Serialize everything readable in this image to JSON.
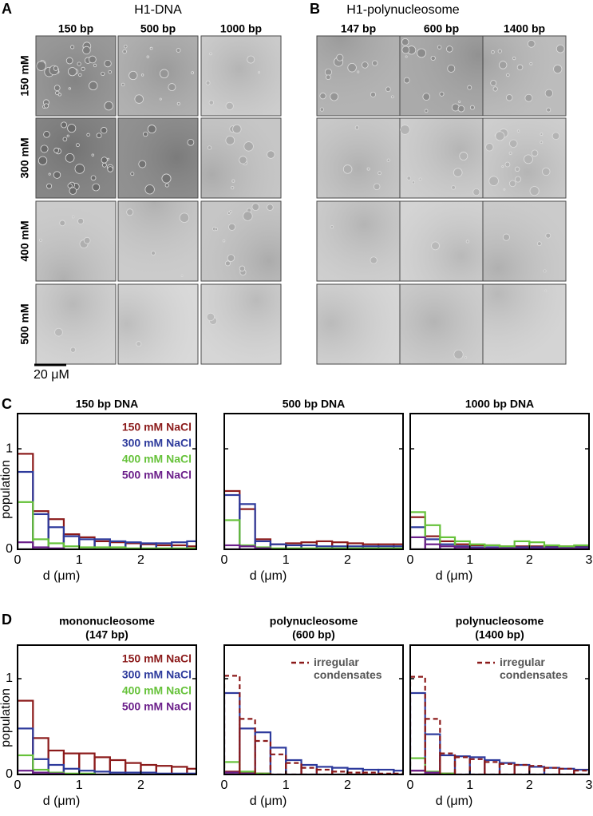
{
  "panel_a": {
    "letter": "A",
    "title": "H1-DNA",
    "columns": [
      "150 bp",
      "500 bp",
      "1000 bp"
    ],
    "rows": [
      "150 mM",
      "300 mM",
      "400 mM",
      "500 mM"
    ],
    "scale_bar": "20 μM"
  },
  "panel_b": {
    "letter": "B",
    "title": "H1-polynucleosome",
    "columns": [
      "147 bp",
      "600 bp",
      "1400 bp"
    ]
  },
  "panel_c": {
    "letter": "C"
  },
  "panel_d": {
    "letter": "D"
  },
  "chart_data": [
    {
      "type": "histogram",
      "title": "150 bp DNA",
      "xlabel": "d (μm)",
      "ylabel": "population",
      "show_ytick_labels": true,
      "bins": [
        0,
        0.25,
        0.5,
        0.75,
        1,
        1.25,
        1.5,
        1.75,
        2,
        2.25,
        2.5,
        2.75,
        3
      ],
      "xlim": [
        0,
        2.9
      ],
      "xticks": [
        0,
        1,
        2
      ],
      "ylim": [
        0,
        1.35
      ],
      "yticks": [
        0,
        1
      ],
      "series": [
        {
          "name": "150 mM NaCl",
          "color": "#8b1a1a",
          "values": [
            0.95,
            0.38,
            0.3,
            0.15,
            0.12,
            0.08,
            0.07,
            0.06,
            0.05,
            0.04,
            0.04,
            0.03
          ]
        },
        {
          "name": "300 mM NaCl",
          "color": "#2d3a9c",
          "values": [
            0.77,
            0.35,
            0.22,
            0.13,
            0.1,
            0.1,
            0.08,
            0.07,
            0.06,
            0.06,
            0.07,
            0.08
          ]
        },
        {
          "name": "400 mM NaCl",
          "color": "#66c23a",
          "values": [
            0.47,
            0.1,
            0.06,
            0.03,
            0.02,
            0.02,
            0.02,
            0.01,
            0.01,
            0.01,
            0.01,
            0.01
          ]
        },
        {
          "name": "500 mM NaCl",
          "color": "#6b1f8a",
          "values": [
            0.07,
            0.02,
            0.01,
            0,
            0,
            0,
            0,
            0,
            0,
            0,
            0,
            0
          ]
        }
      ]
    },
    {
      "type": "histogram",
      "title": "500 bp DNA",
      "xlabel": "d (μm)",
      "show_ytick_labels": false,
      "bins": [
        0,
        0.25,
        0.5,
        0.75,
        1,
        1.25,
        1.5,
        1.75,
        2,
        2.25,
        2.5,
        2.75,
        3
      ],
      "xlim": [
        0,
        2.9
      ],
      "xticks": [
        0,
        1,
        2
      ],
      "ylim": [
        0,
        1.35
      ],
      "yticks": [
        0,
        1
      ],
      "series": [
        {
          "color": "#8b1a1a",
          "values": [
            0.58,
            0.4,
            0.1,
            0.05,
            0.06,
            0.07,
            0.08,
            0.07,
            0.06,
            0.05,
            0.05,
            0.05
          ]
        },
        {
          "color": "#2d3a9c",
          "values": [
            0.54,
            0.45,
            0.08,
            0.05,
            0.04,
            0.04,
            0.03,
            0.03,
            0.03,
            0.03,
            0.03,
            0.03
          ]
        },
        {
          "color": "#66c23a",
          "values": [
            0.29,
            0.04,
            0.02,
            0.01,
            0.01,
            0.01,
            0.01,
            0.01,
            0.01,
            0.01,
            0.01,
            0.01
          ]
        },
        {
          "color": "#6b1f8a",
          "values": [
            0.04,
            0.03,
            0.01,
            0,
            0,
            0,
            0,
            0,
            0,
            0,
            0,
            0
          ]
        }
      ]
    },
    {
      "type": "histogram",
      "title": "1000 bp DNA",
      "xlabel": "d (μm)",
      "show_ytick_labels": false,
      "bins": [
        0,
        0.25,
        0.5,
        0.75,
        1,
        1.25,
        1.5,
        1.75,
        2,
        2.25,
        2.5,
        2.75,
        3
      ],
      "xlim": [
        0,
        3
      ],
      "xticks": [
        0,
        1,
        2,
        3
      ],
      "ylim": [
        0,
        1.35
      ],
      "yticks": [
        0,
        1
      ],
      "series": [
        {
          "color": "#8b1a1a",
          "values": [
            0.32,
            0.13,
            0.08,
            0.05,
            0.04,
            0.04,
            0.03,
            0.03,
            0.03,
            0.03,
            0.03,
            0.03
          ]
        },
        {
          "color": "#2d3a9c",
          "values": [
            0.22,
            0.1,
            0.05,
            0.03,
            0.02,
            0.02,
            0.02,
            0.02,
            0.02,
            0.02,
            0.02,
            0.02
          ]
        },
        {
          "color": "#66c23a",
          "values": [
            0.37,
            0.24,
            0.12,
            0.08,
            0.05,
            0.04,
            0.03,
            0.08,
            0.07,
            0.04,
            0.03,
            0.04
          ]
        },
        {
          "color": "#6b1f8a",
          "values": [
            0.12,
            0.05,
            0.03,
            0.02,
            0.01,
            0.01,
            0.01,
            0.01,
            0.01,
            0.01,
            0.01,
            0.01
          ]
        }
      ]
    },
    {
      "type": "histogram",
      "title": "mononucleosome",
      "subtitle": "(147 bp)",
      "xlabel": "d (μm)",
      "ylabel": "population",
      "show_ytick_labels": true,
      "bins": [
        0,
        0.25,
        0.5,
        0.75,
        1,
        1.25,
        1.5,
        1.75,
        2,
        2.25,
        2.5,
        2.75,
        3
      ],
      "xlim": [
        0,
        2.9
      ],
      "xticks": [
        0,
        1,
        2
      ],
      "ylim": [
        0,
        1.35
      ],
      "yticks": [
        0,
        1
      ],
      "series": [
        {
          "name": "150 mM NaCl",
          "color": "#8b1a1a",
          "values": [
            0.77,
            0.38,
            0.25,
            0.22,
            0.22,
            0.18,
            0.15,
            0.12,
            0.1,
            0.09,
            0.08,
            0.06
          ]
        },
        {
          "name": "300 mM NaCl",
          "color": "#2d3a9c",
          "values": [
            0.48,
            0.16,
            0.1,
            0.06,
            0.04,
            0.03,
            0.02,
            0.02,
            0.02,
            0.01,
            0.01,
            0.01
          ]
        },
        {
          "name": "400 mM NaCl",
          "color": "#66c23a",
          "values": [
            0.2,
            0.05,
            0.02,
            0.01,
            0.01,
            0,
            0,
            0,
            0,
            0,
            0,
            0
          ]
        },
        {
          "name": "500 mM NaCl",
          "color": "#6b1f8a",
          "values": [
            0.04,
            0.02,
            0.01,
            0,
            0,
            0,
            0,
            0,
            0,
            0,
            0,
            0
          ]
        }
      ]
    },
    {
      "type": "histogram",
      "title": "polynucleosome",
      "subtitle": "(600 bp)",
      "xlabel": "d (μm)",
      "show_ytick_labels": false,
      "bins": [
        0,
        0.25,
        0.5,
        0.75,
        1,
        1.25,
        1.5,
        1.75,
        2,
        2.25,
        2.5,
        2.75,
        3
      ],
      "xlim": [
        0,
        2.9
      ],
      "xticks": [
        0,
        1,
        2
      ],
      "ylim": [
        0,
        1.35
      ],
      "yticks": [
        0,
        1
      ],
      "series": [
        {
          "color": "#8b1a1a",
          "values": [
            0.03,
            0.02,
            0.01,
            0,
            0,
            0,
            0,
            0,
            0,
            0,
            0,
            0
          ]
        },
        {
          "color": "#2d3a9c",
          "values": [
            0.85,
            0.48,
            0.44,
            0.28,
            0.15,
            0.1,
            0.08,
            0.07,
            0.06,
            0.05,
            0.05,
            0.04
          ]
        },
        {
          "color": "#66c23a",
          "values": [
            0.13,
            0.03,
            0.01,
            0,
            0,
            0,
            0,
            0,
            0,
            0,
            0,
            0
          ]
        },
        {
          "color": "#6b1f8a",
          "values": [
            0.02,
            0.01,
            0,
            0,
            0,
            0,
            0,
            0,
            0,
            0,
            0,
            0
          ]
        },
        {
          "name": "irregular condensates",
          "color": "#8b1a1a",
          "dashed": true,
          "values": [
            1.03,
            0.58,
            0.35,
            0.21,
            0.12,
            0.07,
            0.05,
            0.03,
            0.02,
            0.02,
            0.01,
            0.01
          ]
        }
      ]
    },
    {
      "type": "histogram",
      "title": "polynucleosome",
      "subtitle": "(1400 bp)",
      "xlabel": "d (μm)",
      "show_ytick_labels": false,
      "bins": [
        0,
        0.25,
        0.5,
        0.75,
        1,
        1.25,
        1.5,
        1.75,
        2,
        2.25,
        2.5,
        2.75,
        3
      ],
      "xlim": [
        0,
        3
      ],
      "xticks": [
        0,
        1,
        2,
        3
      ],
      "ylim": [
        0,
        1.35
      ],
      "yticks": [
        0,
        1
      ],
      "series": [
        {
          "color": "#8b1a1a",
          "values": [
            0.04,
            0.02,
            0.01,
            0,
            0,
            0,
            0,
            0,
            0,
            0,
            0,
            0
          ]
        },
        {
          "color": "#2d3a9c",
          "values": [
            0.85,
            0.42,
            0.2,
            0.19,
            0.18,
            0.15,
            0.12,
            0.1,
            0.08,
            0.07,
            0.06,
            0.05
          ]
        },
        {
          "color": "#66c23a",
          "values": [
            0.17,
            0.03,
            0.01,
            0,
            0,
            0,
            0,
            0,
            0,
            0,
            0,
            0
          ]
        },
        {
          "color": "#6b1f8a",
          "values": [
            0.04,
            0.02,
            0,
            0,
            0,
            0,
            0,
            0,
            0,
            0,
            0,
            0
          ]
        },
        {
          "name": "irregular condensates",
          "color": "#8b1a1a",
          "dashed": true,
          "values": [
            1.02,
            0.58,
            0.22,
            0.18,
            0.16,
            0.13,
            0.11,
            0.1,
            0.09,
            0.07,
            0.06,
            0.04
          ]
        }
      ]
    }
  ]
}
